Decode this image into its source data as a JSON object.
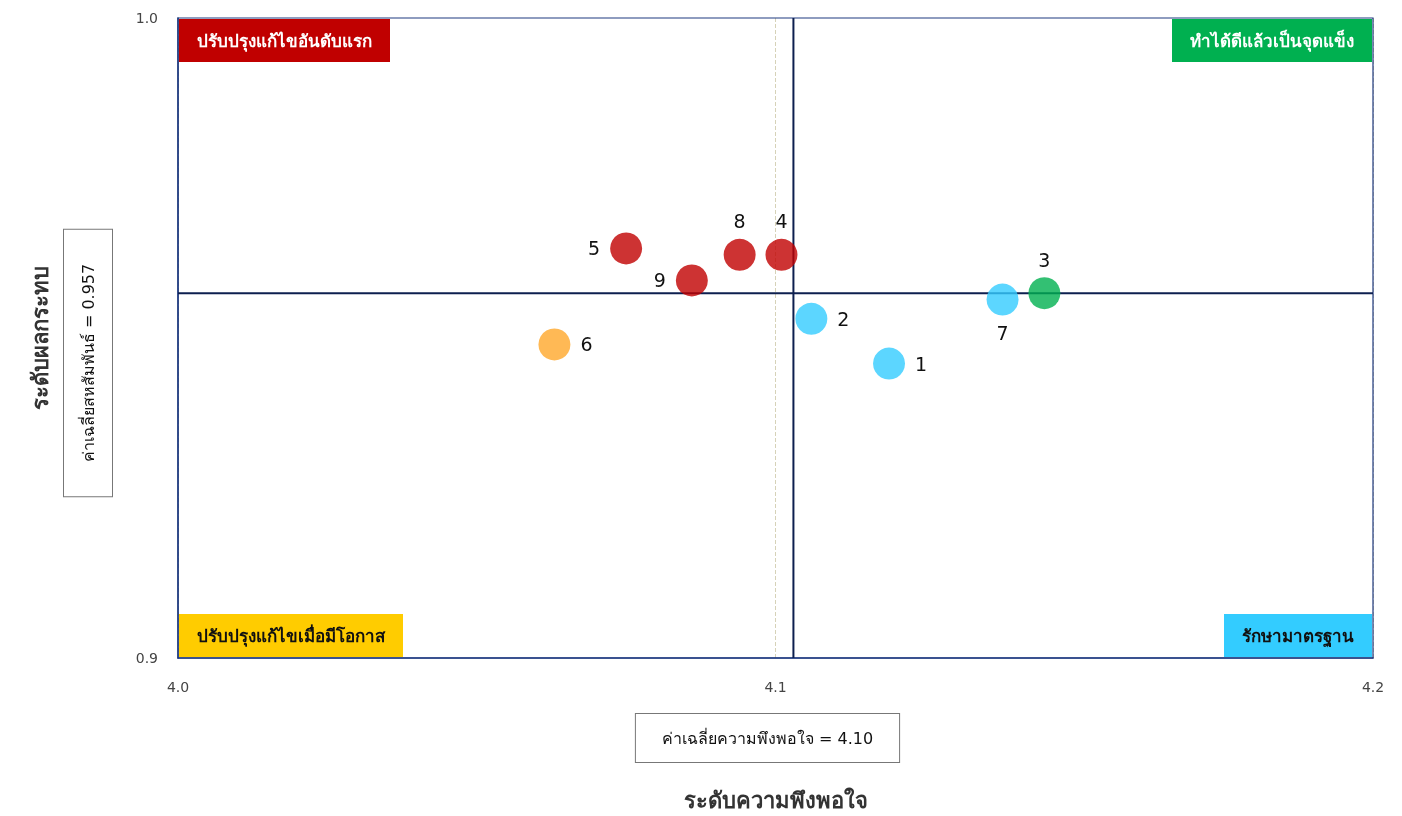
{
  "chart_data": {
    "type": "scatter",
    "xlabel": "ระดับความพึงพอใจ",
    "ylabel": "ระดับผลกระทบ",
    "x": [
      4.119,
      4.106,
      4.145,
      4.101,
      4.075,
      4.063,
      4.138,
      4.094,
      4.086
    ],
    "values": [
      0.946,
      0.953,
      0.957,
      0.963,
      0.964,
      0.949,
      0.956,
      0.963,
      0.959
    ],
    "colors": [
      "#33ccff",
      "#33ccff",
      "#00b050",
      "#c00000",
      "#c00000",
      "#ffa72a",
      "#33ccff",
      "#c00000",
      "#c00000"
    ],
    "xlim": [
      4.0,
      4.2
    ],
    "xticks": [
      {
        "value": 4.0,
        "label": "4.0"
      },
      {
        "value": 4.1,
        "label": "4.1"
      },
      {
        "value": 4.2,
        "label": "4.2"
      }
    ],
    "ylim": [
      0.9,
      1.0
    ],
    "yticks": [
      {
        "value": 0.9,
        "label": "0.9"
      },
      {
        "value": 1.0,
        "label": "1.0"
      }
    ],
    "grid": "x",
    "marker": "circle",
    "ref_lines": [
      {
        "axis": "x",
        "value": 4.103,
        "color": "#0d1f4f"
      },
      {
        "axis": "y",
        "value": 0.957,
        "color": "#0d1f4f"
      }
    ],
    "annotations": [
      "ปรับปรุงแก้ไขอันดับแรก",
      "ทำได้ดีแล้วเป็นจุดแข็ง",
      "ปรับปรุงแก้ไขเมื่อมีโอกาส",
      "รักษามาตรฐาน",
      "ค่าเฉลี่ยความพึงพอใจ = 4.10",
      "ค่าเฉลี่ยสหสัมพันธ์ = 0.957",
      {
        "text": "1",
        "x": 4.119,
        "y": 0.946
      },
      {
        "text": "2",
        "x": 4.106,
        "y": 0.953
      },
      {
        "text": "3",
        "x": 4.145,
        "y": 0.957
      },
      {
        "text": "4",
        "x": 4.101,
        "y": 0.963
      },
      {
        "text": "5",
        "x": 4.075,
        "y": 0.964
      },
      {
        "text": "6",
        "x": 4.063,
        "y": 0.949
      },
      {
        "text": "7",
        "x": 4.138,
        "y": 0.956
      },
      {
        "text": "8",
        "x": 4.094,
        "y": 0.963
      },
      {
        "text": "9",
        "x": 4.086,
        "y": 0.959
      }
    ]
  }
}
